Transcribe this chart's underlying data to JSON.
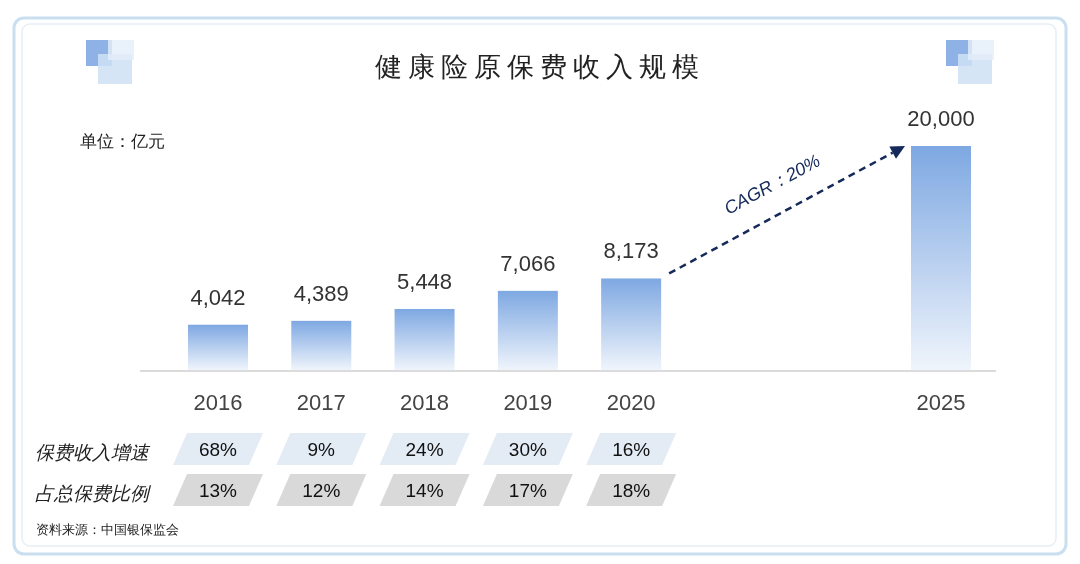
{
  "chart_data": [
    {
      "type": "bar",
      "title": "健康险原保费收入规模",
      "categories": [
        "2016",
        "2017",
        "2018",
        "2019",
        "2020",
        null,
        null,
        "2025"
      ],
      "values": [
        4042,
        4389,
        5448,
        7066,
        8173,
        null,
        null,
        20000
      ],
      "color": "#7ea8e2",
      "value_labels": [
        "4,042",
        "4,389",
        "5,448",
        "7,066",
        "8,173",
        null,
        null,
        "20,000"
      ],
      "annotations": [
        "单位：亿元",
        "CAGR：20%",
        "资料来源：中国银保监会"
      ]
    },
    {
      "type": "other",
      "title": "保费收入增速",
      "values": [
        68,
        9,
        24,
        30,
        16
      ],
      "value_labels": [
        "68%",
        "9%",
        "24%",
        "30%",
        "16%"
      ],
      "color": "#e3ebf5"
    },
    {
      "type": "other",
      "title": "占总保费比例",
      "values": [
        13,
        12,
        14,
        17,
        18
      ],
      "value_labels": [
        "13%",
        "12%",
        "14%",
        "17%",
        "18%"
      ],
      "color": "#d9d9d9"
    }
  ]
}
